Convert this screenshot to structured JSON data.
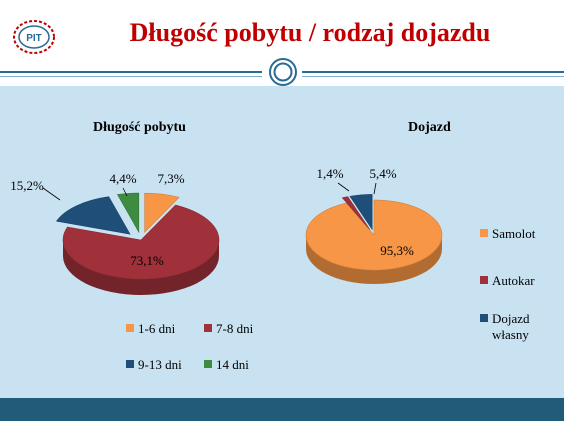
{
  "slide": {
    "title": "Długość pobytu / rodzaj dojazdu",
    "logo_text": "PIT"
  },
  "colors": {
    "accent_red": "#c00000",
    "panel_bg": "#c9e2f2",
    "footer": "#205b7a",
    "orange": "#f79646",
    "red": "#a0313a",
    "blue": "#1f4e79",
    "green": "#3d8c40"
  },
  "chart_data": [
    {
      "type": "pie",
      "title": "Długość pobytu",
      "categories": [
        "1-6 dni",
        "7-8 dni",
        "9-13 dni",
        "14 dni"
      ],
      "values": [
        7.3,
        73.1,
        15.2,
        4.4
      ],
      "value_labels": [
        "7,3%",
        "73,1%",
        "15,2%",
        "4,4%"
      ],
      "colors": [
        "#f79646",
        "#a0313a",
        "#1f4e79",
        "#3d8c40"
      ],
      "exploded": [
        "1-6 dni",
        "9-13 dni",
        "14 dni"
      ],
      "legend_position": "bottom"
    },
    {
      "type": "pie",
      "title": "Dojazd",
      "categories": [
        "Samolot",
        "Autokar",
        "Dojazd własny"
      ],
      "values": [
        95.3,
        1.4,
        5.4
      ],
      "value_labels": [
        "95,3%",
        "1,4%",
        "5,4%"
      ],
      "colors": [
        "#f79646",
        "#a0313a",
        "#1f4e79"
      ],
      "exploded": [
        "Autokar",
        "Dojazd własny"
      ],
      "legend_position": "right"
    }
  ]
}
